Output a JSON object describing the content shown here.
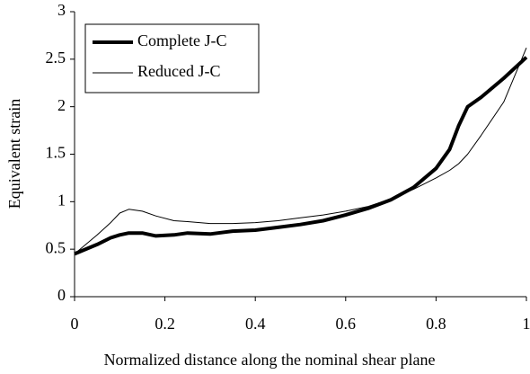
{
  "chart_data": {
    "type": "line",
    "xlabel": "Normalized distance along the nominal shear plane",
    "ylabel": "Equivalent strain",
    "x": [
      0,
      0.05,
      0.08,
      0.1,
      0.12,
      0.15,
      0.18,
      0.22,
      0.25,
      0.3,
      0.35,
      0.4,
      0.45,
      0.5,
      0.55,
      0.6,
      0.65,
      0.7,
      0.75,
      0.8,
      0.83,
      0.85,
      0.87,
      0.9,
      0.95,
      1.0
    ],
    "series": [
      {
        "name": "Complete J-C",
        "color": "#000000",
        "line_width": 4,
        "values": [
          0.45,
          0.55,
          0.62,
          0.65,
          0.67,
          0.67,
          0.64,
          0.65,
          0.67,
          0.66,
          0.69,
          0.7,
          0.73,
          0.76,
          0.8,
          0.86,
          0.93,
          1.02,
          1.15,
          1.35,
          1.55,
          1.8,
          2.0,
          2.1,
          2.3,
          2.52
        ]
      },
      {
        "name": "Reduced J-C",
        "color": "#000000",
        "line_width": 1,
        "values": [
          0.45,
          0.65,
          0.78,
          0.88,
          0.92,
          0.9,
          0.85,
          0.8,
          0.79,
          0.77,
          0.77,
          0.78,
          0.8,
          0.83,
          0.86,
          0.9,
          0.95,
          1.03,
          1.13,
          1.25,
          1.33,
          1.4,
          1.5,
          1.7,
          2.05,
          2.62
        ]
      }
    ],
    "xlim": [
      0,
      1
    ],
    "xticks": [
      0,
      0.2,
      0.4,
      0.6,
      0.8,
      1
    ],
    "ylim": [
      0,
      3
    ],
    "yticks": [
      0,
      0.5,
      1,
      1.5,
      2,
      2.5,
      3
    ],
    "grid": false,
    "legend": "upper left"
  }
}
